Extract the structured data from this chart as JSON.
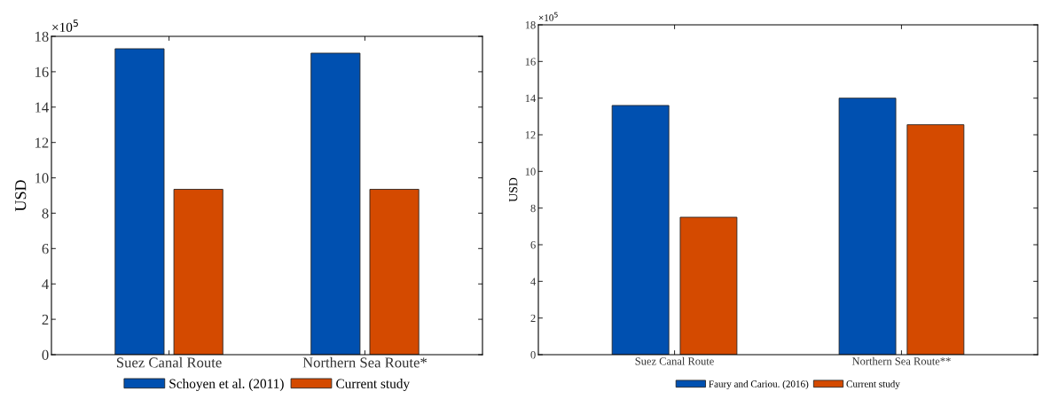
{
  "chart_data": [
    {
      "type": "bar",
      "ylabel": "USD",
      "categories": [
        "Suez Canal Route",
        "Northern Sea Route*"
      ],
      "ylim": [
        0,
        18
      ],
      "yticks": [
        0,
        2,
        4,
        6,
        8,
        10,
        12,
        14,
        16,
        18
      ],
      "annotations": [
        "×10$^{5}$"
      ],
      "legend": "bottom",
      "grid": false,
      "series": [
        {
          "name": "Schoyen et al. (2011)",
          "color": "#0050b0",
          "values": [
            17.3,
            17.05
          ]
        },
        {
          "name": "Current study",
          "color": "#d44a00",
          "values": [
            9.35,
            9.35
          ]
        }
      ]
    },
    {
      "type": "bar",
      "ylabel": "USD",
      "categories": [
        "Suez Canal Route",
        "Northern Sea Route**"
      ],
      "ylim": [
        0,
        18
      ],
      "yticks": [
        0,
        2,
        4,
        6,
        8,
        10,
        12,
        14,
        16,
        18
      ],
      "annotations": [
        "×10$^{5}$"
      ],
      "legend": "bottom",
      "grid": false,
      "series": [
        {
          "name": "Faury and Cariou. (2016)",
          "color": "#0050b0",
          "values": [
            13.6,
            14.0
          ]
        },
        {
          "name": "Current study",
          "color": "#d44a00",
          "values": [
            7.5,
            12.55
          ]
        }
      ]
    }
  ]
}
